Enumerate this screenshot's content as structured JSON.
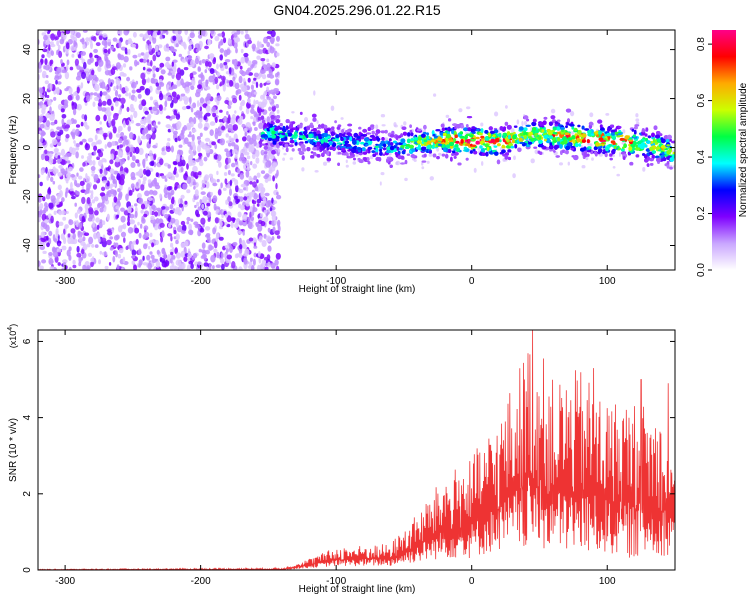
{
  "title": "GN04.2025.296.01.22.R15",
  "chart_data": [
    {
      "type": "heatmap",
      "name": "spectrogram",
      "xlabel": "Height of straight line (km)",
      "ylabel": "Frequency (Hz)",
      "xlim": [
        -320,
        150
      ],
      "ylim": [
        -50,
        48
      ],
      "x_ticks": [
        -300,
        -200,
        -100,
        0,
        100
      ],
      "x_tick_labels": [
        "-300",
        "-200",
        "-100",
        "0",
        "100"
      ],
      "y_ticks": [
        -40,
        -20,
        0,
        20,
        40
      ],
      "y_tick_labels": [
        "-40",
        "-20",
        "0",
        "20",
        "40"
      ],
      "noise_region": {
        "x_from": -320,
        "x_to": -150,
        "f_from": -50,
        "f_to": 48,
        "amplitude": 0.12
      },
      "signal_band": {
        "x_from": -155,
        "x_to": 150,
        "center_freq": [
          {
            "x": -155,
            "f": 6
          },
          {
            "x": -120,
            "f": 4
          },
          {
            "x": -90,
            "f": 2
          },
          {
            "x": -60,
            "f": 0
          },
          {
            "x": -40,
            "f": 2
          },
          {
            "x": -20,
            "f": 3
          },
          {
            "x": 0,
            "f": 3
          },
          {
            "x": 20,
            "f": 2
          },
          {
            "x": 40,
            "f": 5
          },
          {
            "x": 60,
            "f": 5
          },
          {
            "x": 80,
            "f": 4
          },
          {
            "x": 100,
            "f": 3
          },
          {
            "x": 120,
            "f": 2
          },
          {
            "x": 140,
            "f": 0
          },
          {
            "x": 150,
            "f": -2
          }
        ],
        "peak_amplitude": [
          {
            "x": -155,
            "a": 0.45
          },
          {
            "x": -100,
            "a": 0.4
          },
          {
            "x": -60,
            "a": 0.4
          },
          {
            "x": -20,
            "a": 0.7
          },
          {
            "x": 0,
            "a": 0.85
          },
          {
            "x": 40,
            "a": 0.65
          },
          {
            "x": 90,
            "a": 0.8
          },
          {
            "x": 150,
            "a": 0.6
          }
        ],
        "width_hz": 10
      },
      "colorbar": {
        "label": "Normalized spectral amplitude",
        "range": [
          0.0,
          0.85
        ],
        "ticks": [
          0.0,
          0.2,
          0.4,
          0.6,
          0.8
        ],
        "tick_labels": [
          "0.0",
          "0.2",
          "0.4",
          "0.6",
          "0.8"
        ],
        "colors": [
          "#ffffff",
          "#c9a6ff",
          "#7f00ff",
          "#0000ff",
          "#00ffff",
          "#00ff44",
          "#ccff00",
          "#ffaa00",
          "#ff0000",
          "#ff0088"
        ]
      }
    },
    {
      "type": "line",
      "name": "snr",
      "xlabel": "Height of straight line (km)",
      "ylabel": "SNR (10 * v/v)",
      "y_multiplier": "(x10",
      "y_multiplier_exp": "4",
      "y_multiplier_close": ")",
      "xlim": [
        -320,
        150
      ],
      "ylim": [
        0,
        6.3
      ],
      "x_ticks": [
        -300,
        -200,
        -100,
        0,
        100
      ],
      "x_tick_labels": [
        "-300",
        "-200",
        "-100",
        "0",
        "100"
      ],
      "y_ticks": [
        0,
        2,
        4,
        6
      ],
      "y_tick_labels": [
        "0",
        "2",
        "4",
        "6"
      ],
      "color": "#ee3333",
      "envelope": [
        {
          "x": -320,
          "lo": 0.0,
          "hi": 0.02
        },
        {
          "x": -140,
          "lo": 0.0,
          "hi": 0.05
        },
        {
          "x": -120,
          "lo": 0.05,
          "hi": 0.3
        },
        {
          "x": -100,
          "lo": 0.1,
          "hi": 0.6
        },
        {
          "x": -60,
          "lo": 0.1,
          "hi": 0.7
        },
        {
          "x": -40,
          "lo": 0.2,
          "hi": 1.5
        },
        {
          "x": -20,
          "lo": 0.3,
          "hi": 2.5
        },
        {
          "x": 0,
          "lo": 0.3,
          "hi": 3.0
        },
        {
          "x": 20,
          "lo": 0.5,
          "hi": 4.0
        },
        {
          "x": 45,
          "lo": 0.5,
          "hi": 6.3
        },
        {
          "x": 60,
          "lo": 0.5,
          "hi": 5.0
        },
        {
          "x": 80,
          "lo": 0.4,
          "hi": 5.3
        },
        {
          "x": 100,
          "lo": 0.4,
          "hi": 4.5
        },
        {
          "x": 120,
          "lo": 0.3,
          "hi": 4.5
        },
        {
          "x": 150,
          "lo": 0.4,
          "hi": 4.0
        }
      ],
      "peaks": [
        {
          "x": 45,
          "y": 6.3
        },
        {
          "x": 90,
          "y": 5.3
        },
        {
          "x": 125,
          "y": 5.0
        },
        {
          "x": 145,
          "y": 4.9
        }
      ]
    }
  ]
}
